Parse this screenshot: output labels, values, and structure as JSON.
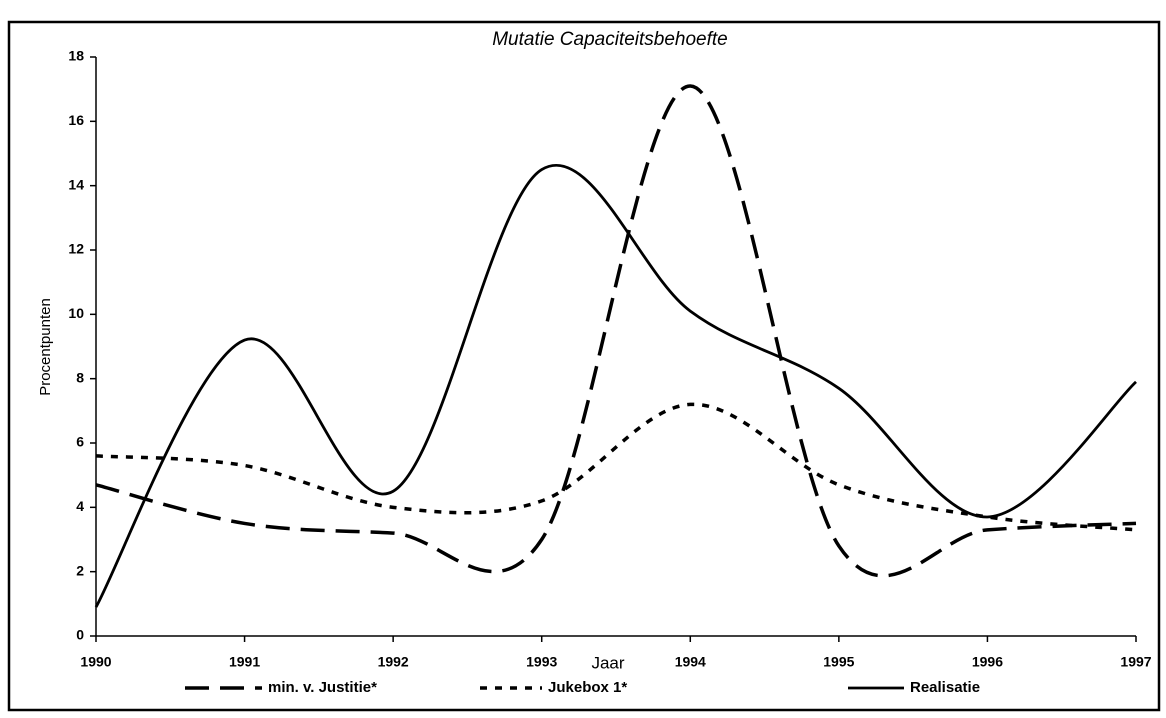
{
  "chart_data": {
    "type": "line",
    "title": "Mutatie Capaciteitsbehoefte",
    "x_label": "Jaar",
    "y_label": "Procentpunten",
    "x": [
      1990,
      1991,
      1992,
      1993,
      1994,
      1995,
      1996,
      1997
    ],
    "xlim": [
      1990,
      1997
    ],
    "xticks": [
      1990,
      1991,
      1992,
      1993,
      1994,
      1995,
      1996,
      1997
    ],
    "ylim": [
      0,
      18
    ],
    "yticks": [
      0,
      2,
      4,
      6,
      8,
      10,
      12,
      14,
      16,
      18
    ],
    "smooth": true,
    "legend": "bottom",
    "series": [
      {
        "name": "min. v. Justitie*",
        "color": "#000000",
        "dash": "dashed",
        "values": [
          4.7,
          3.5,
          3.2,
          3.0,
          17.1,
          2.8,
          3.3,
          3.5
        ]
      },
      {
        "name": "Jukebox 1*",
        "color": "#000000",
        "dash": "dotted",
        "values": [
          5.6,
          5.3,
          4.0,
          4.2,
          7.2,
          4.7,
          3.7,
          3.3
        ]
      },
      {
        "name": "Realisatie",
        "color": "#000000",
        "dash": "solid",
        "values": [
          0.9,
          9.2,
          4.5,
          14.5,
          10.1,
          7.7,
          3.7,
          7.9
        ]
      }
    ]
  }
}
